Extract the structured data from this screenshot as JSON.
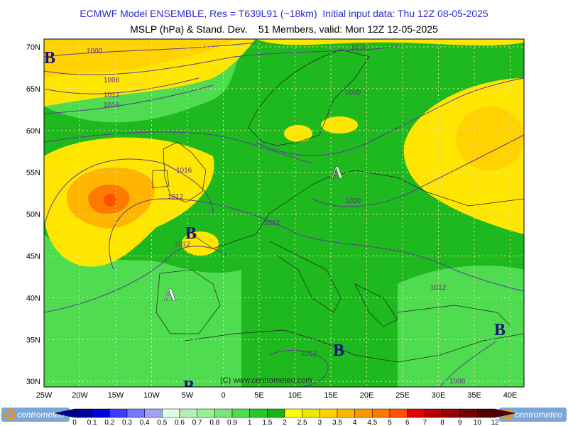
{
  "header": {
    "line1": "ECMWF Model ENSEMBLE, Res = T639L91 (~18km)  Initial input data: Thu 12Z 08-05-2025",
    "line2": "MSLP (hPa) & Stand. Dev.    51 Members, valid: Mon 12Z 12-05-2025"
  },
  "map": {
    "lat_labels": [
      "70N",
      "65N",
      "60N",
      "55N",
      "50N",
      "45N",
      "40N",
      "35N",
      "30N"
    ],
    "lon_labels": [
      "25W",
      "20W",
      "15W",
      "10W",
      "5W",
      "0",
      "5E",
      "10E",
      "15E",
      "20E",
      "25E",
      "30E",
      "35E",
      "40E"
    ],
    "isobar_labels": [
      "1000",
      "1008",
      "1012",
      "1016",
      "1016",
      "1020",
      "1016",
      "1012",
      "1020",
      "1012",
      "1012",
      "1012",
      "1012",
      "1008"
    ],
    "pressure_centers": [
      "B",
      "B",
      "A",
      "A",
      "B",
      "B",
      "B"
    ],
    "copyright": "(C) www.centrometeo.com"
  },
  "colorbar": {
    "levels": [
      0,
      0.1,
      0.2,
      0.3,
      0.4,
      0.5,
      0.6,
      0.7,
      0.8,
      0.9,
      1,
      1.5,
      2,
      2.5,
      3,
      3.5,
      4,
      4.5,
      5,
      6,
      7,
      8,
      9,
      10,
      12
    ],
    "colors": [
      "#000096",
      "#0000dc",
      "#3c3cff",
      "#7878ff",
      "#a0a0ff",
      "#e0ffe0",
      "#b4f0b4",
      "#96f096",
      "#78e678",
      "#50dc50",
      "#28c828",
      "#14b414",
      "#ffff00",
      "#f0e600",
      "#ffd200",
      "#ffb400",
      "#ff9600",
      "#ff7800",
      "#ff5000",
      "#e60000",
      "#b40000",
      "#960000",
      "#780000",
      "#500000"
    ]
  },
  "logos": [
    "centrometeo",
    "centrometeo"
  ]
}
